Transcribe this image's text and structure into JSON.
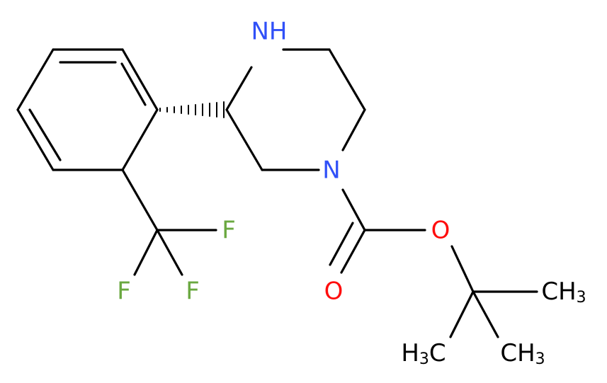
{
  "labels": [
    [
      "NH"
    ],
    [
      "N"
    ],
    [
      "O"
    ],
    [
      "O"
    ],
    [
      "F"
    ],
    [
      "F"
    ],
    [
      "F"
    ],
    [
      "CH",
      "3"
    ],
    [
      "H",
      "3",
      "C"
    ],
    [
      "CH",
      "3"
    ]
  ]
}
